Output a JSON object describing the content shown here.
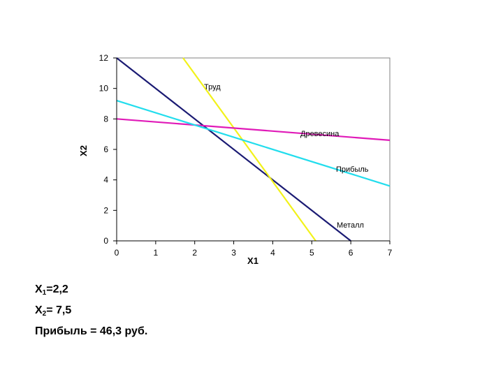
{
  "chart_data": {
    "type": "line",
    "xlabel": "X1",
    "ylabel": "X2",
    "xlim": [
      0,
      7
    ],
    "ylim": [
      0,
      12
    ],
    "x_ticks": [
      "0",
      "1",
      "2",
      "3",
      "4",
      "5",
      "6",
      "7"
    ],
    "y_ticks": [
      "0",
      "2",
      "4",
      "6",
      "8",
      "10",
      "12"
    ],
    "grid": false,
    "legend": "inline labels",
    "series": [
      {
        "name": "Металл",
        "color": "#1a1a73",
        "points": [
          [
            0,
            12
          ],
          [
            6,
            0
          ]
        ]
      },
      {
        "name": "Труд",
        "color": "#f2f21a",
        "points": [
          [
            1.7,
            12
          ],
          [
            5.1,
            0
          ]
        ]
      },
      {
        "name": "Древесина",
        "color": "#e01ab8",
        "points": [
          [
            0,
            8
          ],
          [
            7,
            6.6
          ]
        ]
      },
      {
        "name": "Прибыль",
        "color": "#22dded",
        "points": [
          [
            0,
            9.2
          ],
          [
            7,
            3.6
          ]
        ]
      }
    ]
  },
  "results": {
    "x1_var": "X",
    "x1_sub": "1",
    "x1_value": "=2,2",
    "x2_var": "X",
    "x2_sub": "2",
    "x2_value": "= 7,5",
    "profit": "Прибыль = 46,3 руб."
  }
}
